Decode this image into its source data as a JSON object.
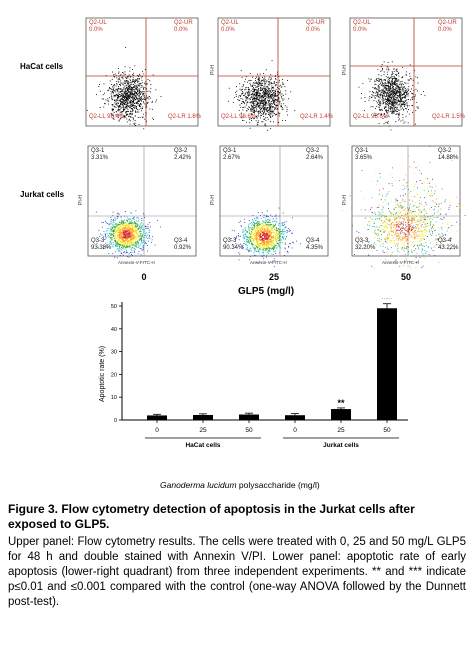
{
  "upper_panel": {
    "row_label": "HaCat cells",
    "y_axis": "PI-H",
    "x_axis": "Annexin-V-FITC-H",
    "plots": [
      {
        "ul": "Q2-UL",
        "ul_v": "0.0%",
        "ur": "Q2-UR",
        "ur_v": "0.0%",
        "ll": "Q2-LL",
        "ll_v": "98.4%",
        "lr": "Q2-LR",
        "lr_v": "1.6%"
      },
      {
        "ul": "Q2-UL",
        "ul_v": "0.0%",
        "ur": "Q2-UR",
        "ur_v": "0.0%",
        "ll": "Q2-LL",
        "ll_v": "98.6%",
        "lr": "Q2-LR",
        "lr_v": "1.4%"
      },
      {
        "ul": "Q2-UL",
        "ul_v": "0.0%",
        "ur": "Q2-UR",
        "ur_v": "0.0%",
        "ll": "Q2-LL",
        "ll_v": "98.6%",
        "lr": "Q2-LR",
        "lr_v": "1.5%"
      }
    ]
  },
  "lower_flow_panel": {
    "row_label": "Jurkat cells",
    "y_axis": "PI-H",
    "x_axis": "Annexin-V-FITC-H",
    "plots": [
      {
        "q1": "Q3-1",
        "q1_v": "3.31%",
        "q2": "Q3-2",
        "q2_v": "2.42%",
        "q3": "Q3-3",
        "q3_v": "93.38%",
        "q4": "Q3-4",
        "q4_v": "0.92%"
      },
      {
        "q1": "Q3-1",
        "q1_v": "2.67%",
        "q2": "Q3-2",
        "q2_v": "2.64%",
        "q3": "Q3-3",
        "q3_v": "90.34%",
        "q4": "Q3-4",
        "q4_v": "4.35%"
      },
      {
        "q1": "Q3-1",
        "q1_v": "3.65%",
        "q2": "Q3-2",
        "q2_v": "14.88%",
        "q3": "Q3-3",
        "q3_v": "32.20%",
        "q4": "Q3-4",
        "q4_v": "43.22%"
      }
    ],
    "concentrations": [
      "0",
      "25",
      "50"
    ],
    "glp_label": "GLP5 (mg/l)"
  },
  "chart_data": {
    "type": "bar",
    "categories": [
      "0",
      "25",
      "50",
      "0",
      "25",
      "50"
    ],
    "groups": [
      "HaCat cells",
      "Jurkat cells"
    ],
    "values": [
      2.0,
      2.2,
      2.4,
      2.1,
      4.8,
      49.0
    ],
    "errors": [
      0.5,
      0.5,
      0.6,
      0.7,
      0.5,
      2.0
    ],
    "significance": [
      "",
      "",
      "",
      "",
      "**",
      "***"
    ],
    "ylabel": "Apoptotic rate (%)",
    "xlabel": "Ganoderma lucidum polysaccharide (mg/l)",
    "xlabel_italic": "Ganoderma lucidum",
    "xlabel_rest": " polysaccharide (mg/l)",
    "yticks": [
      "0",
      "10",
      "20",
      "30",
      "40",
      "50"
    ],
    "ylim": [
      0,
      50
    ],
    "bar_color": "#000000"
  },
  "caption": {
    "title": "Figure 3. Flow cytometry detection of apoptosis in the Jurkat cells after exposed to GLP5.",
    "body": "Upper panel: Flow cytometry results. The cells were treated with 0, 25 and 50 mg/L GLP5 for 48 h and double stained with Annexin V/PI. Lower panel: apoptotic rate of early apoptosis (lower-right quadrant) from three independent experiments. ** and *** indicate p≤0.01 and ≤0.001 compared with the control (one-way ANOVA followed by the Dunnett post-test)."
  }
}
